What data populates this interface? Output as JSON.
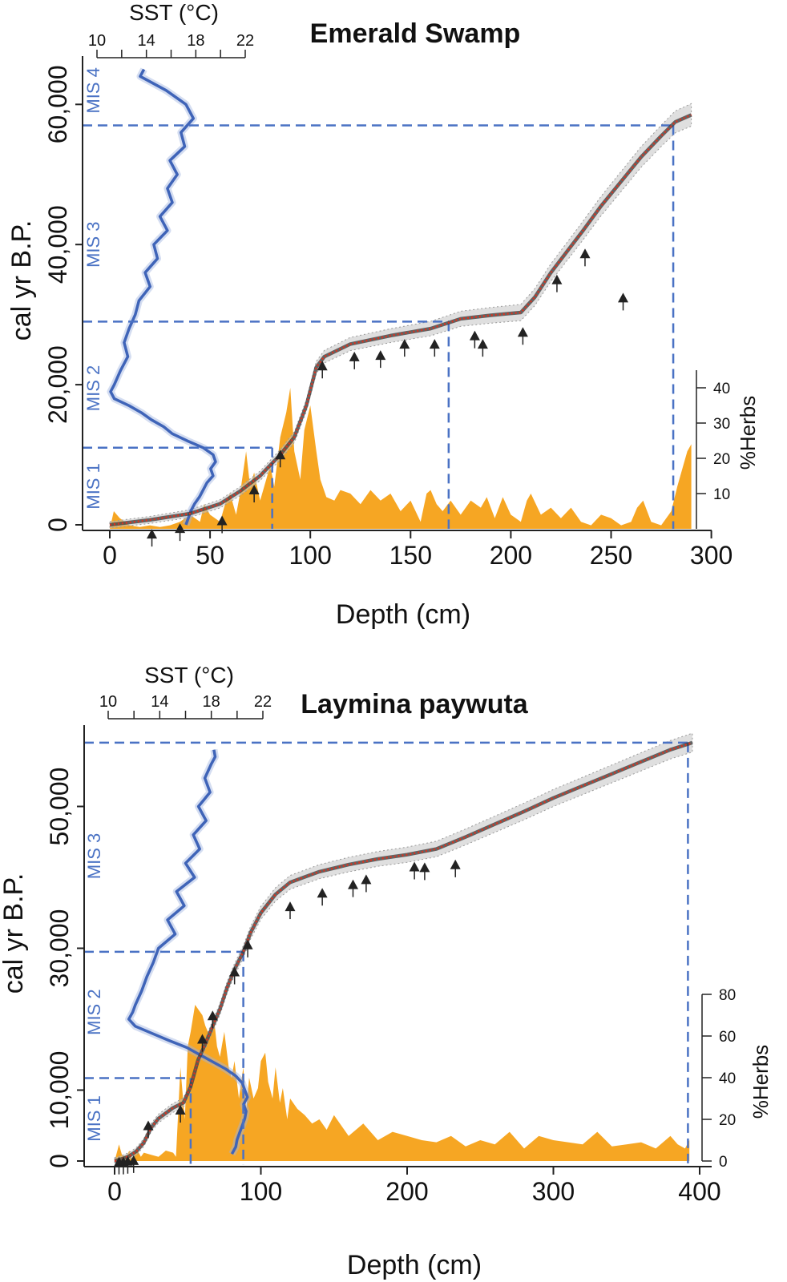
{
  "colors": {
    "sst": "#3f64b8",
    "herbs": "#f6a623",
    "age_model": "#d9331f",
    "envelope": "#c4c4c4",
    "dashed": "#4a72c4",
    "marker": "#222222"
  },
  "chart_data": [
    {
      "type": "line",
      "title": "Emerald Swamp",
      "xlabel": "Depth (cm)",
      "ylabel": "cal yr B.P.",
      "xlim": [
        -14,
        300
      ],
      "ylim": [
        0,
        66000
      ],
      "xticks": [
        0,
        50,
        100,
        150,
        200,
        250,
        300
      ],
      "xtick_labels": [
        "0",
        "50",
        "100",
        "150",
        "200",
        "250",
        "300"
      ],
      "yticks": [
        0,
        20000,
        40000,
        60000
      ],
      "ytick_labels": [
        "0",
        "20,000",
        "40,000",
        "60,000"
      ],
      "sst_axis": {
        "label": "SST (°C)",
        "range": [
          10,
          22
        ],
        "ticks": [
          10,
          14,
          18,
          22
        ],
        "tick_labels": [
          "10",
          "14",
          "18",
          "22"
        ]
      },
      "herbs_axis": {
        "label": "%Herbs",
        "range": [
          0,
          45
        ],
        "ticks": [
          10,
          20,
          30,
          40
        ],
        "tick_labels": [
          "10",
          "20",
          "30",
          "40"
        ]
      },
      "mis_labels": [
        {
          "text": "MIS 4",
          "age": 62000
        },
        {
          "text": "MIS 3",
          "age": 40000
        },
        {
          "text": "MIS 2",
          "age": 19500
        },
        {
          "text": "MIS 1",
          "age": 5500
        }
      ],
      "boundaries": [
        {
          "age": 11000,
          "depth": 81
        },
        {
          "age": 29000,
          "depth": 169
        },
        {
          "age": 57000,
          "depth": 281
        }
      ],
      "age_model": {
        "depth": [
          0,
          20,
          40,
          55,
          65,
          75,
          85,
          92,
          98,
          103,
          107,
          120,
          140,
          160,
          175,
          190,
          205,
          212,
          220,
          228,
          236,
          245,
          255,
          265,
          275,
          282,
          290
        ],
        "age": [
          0,
          700,
          1600,
          3000,
          4800,
          7000,
          10000,
          12500,
          17000,
          22500,
          24000,
          25800,
          27000,
          28000,
          29400,
          29900,
          30300,
          32500,
          36000,
          39000,
          42000,
          45500,
          49000,
          52500,
          55500,
          57500,
          58500
        ]
      },
      "dated_samples": {
        "depth": [
          21,
          35,
          56,
          72,
          85,
          106,
          122,
          135,
          147,
          162,
          182,
          186,
          206,
          223,
          237,
          256
        ],
        "age": [
          -1500,
          -700,
          400,
          4800,
          9800,
          22500,
          23800,
          24000,
          25600,
          25600,
          26800,
          25600,
          27300,
          34800,
          38500,
          32200
        ]
      },
      "sst": {
        "age": [
          65000,
          64000,
          62000,
          60000,
          58000,
          56000,
          54000,
          52000,
          50000,
          48000,
          46000,
          44000,
          42000,
          40000,
          38000,
          36000,
          34000,
          32000,
          30000,
          28000,
          26000,
          24000,
          22000,
          20000,
          19000,
          18000,
          17000,
          16000,
          15000,
          14000,
          13000,
          12000,
          11000,
          10000,
          9000,
          8000,
          7000,
          6000,
          5000,
          4000,
          3000,
          2000,
          1000,
          0
        ],
        "temp": [
          13.8,
          13.5,
          15.6,
          17.2,
          17.8,
          16.8,
          17.1,
          15.9,
          16.5,
          15.7,
          16.1,
          15.1,
          15.7,
          14.6,
          14.9,
          13.9,
          14.3,
          13.4,
          13.1,
          12.6,
          12.2,
          12.5,
          11.9,
          11.4,
          11.1,
          11.4,
          12.6,
          13.6,
          14.4,
          15.4,
          16.1,
          17.3,
          18.6,
          19.4,
          19.6,
          19.2,
          19.4,
          18.9,
          18.6,
          18.3,
          17.9,
          17.6,
          17.4,
          17.2
        ]
      },
      "herbs": {
        "depth": [
          0,
          2,
          5,
          10,
          15,
          20,
          25,
          30,
          35,
          40,
          45,
          47,
          50,
          55,
          58,
          60,
          63,
          65,
          68,
          70,
          72,
          75,
          78,
          80,
          82,
          85,
          88,
          90,
          92,
          95,
          97,
          100,
          103,
          105,
          108,
          112,
          115,
          120,
          125,
          130,
          135,
          140,
          145,
          150,
          155,
          158,
          160,
          163,
          166,
          170,
          175,
          180,
          185,
          188,
          192,
          196,
          200,
          205,
          208,
          210,
          215,
          220,
          225,
          230,
          235,
          240,
          245,
          250,
          255,
          260,
          263,
          266,
          270,
          275,
          280,
          283,
          286,
          288,
          290
        ],
        "pct": [
          0,
          5,
          3,
          1,
          0.5,
          1,
          0.5,
          1,
          2,
          4,
          2,
          7,
          4,
          2,
          8,
          10,
          4,
          10,
          22,
          12,
          16,
          8,
          14,
          18,
          12,
          26,
          33,
          40,
          22,
          14,
          28,
          35,
          22,
          14,
          9,
          8,
          11,
          10,
          7,
          11,
          8,
          10,
          5,
          8,
          2,
          10,
          11,
          7,
          5,
          8,
          4,
          8,
          6,
          9,
          3,
          9,
          4,
          2,
          8,
          10,
          4,
          6,
          3,
          6,
          2,
          1,
          4,
          3,
          1,
          2,
          6,
          8,
          2,
          1,
          5,
          12,
          18,
          22,
          24
        ]
      }
    },
    {
      "type": "line",
      "title": "Laymina paywuta",
      "xlabel": "Depth (cm)",
      "ylabel": "cal yr B.P.",
      "xlim": [
        -12,
        400
      ],
      "ylim": [
        0,
        66000
      ],
      "xticks": [
        0,
        100,
        200,
        300,
        400
      ],
      "xtick_labels": [
        "0",
        "100",
        "200",
        "300",
        "400"
      ],
      "yticks": [
        0,
        10000,
        30000,
        50000
      ],
      "ytick_labels": [
        "0",
        "10,000",
        "30,000",
        "50,000"
      ],
      "sst_axis": {
        "label": "SST (°C)",
        "range": [
          10,
          22
        ],
        "ticks": [
          10,
          14,
          18,
          22
        ],
        "tick_labels": [
          "10",
          "14",
          "18",
          "22"
        ]
      },
      "herbs_axis": {
        "label": "%Herbs",
        "range": [
          0,
          80
        ],
        "ticks": [
          0,
          20,
          40,
          60,
          80
        ],
        "tick_labels": [
          "0",
          "20",
          "40",
          "60",
          "80"
        ]
      },
      "mis_labels": [
        {
          "text": "MIS 3",
          "age": 43000
        },
        {
          "text": "MIS 2",
          "age": 21000
        },
        {
          "text": "MIS 1",
          "age": 6000
        }
      ],
      "boundaries": [
        {
          "age": 11700,
          "depth": 52
        },
        {
          "age": 29500,
          "depth": 88
        },
        {
          "age": 59000,
          "depth": 392
        }
      ],
      "age_model": {
        "depth": [
          0,
          5,
          10,
          15,
          20,
          25,
          30,
          40,
          47,
          52,
          57,
          62,
          67,
          72,
          77,
          82,
          88,
          93,
          100,
          110,
          120,
          140,
          160,
          180,
          200,
          220,
          240,
          260,
          280,
          300,
          320,
          340,
          360,
          380,
          395
        ],
        "age": [
          0,
          300,
          700,
          1400,
          2600,
          4700,
          6000,
          7500,
          8200,
          10500,
          14200,
          16500,
          19000,
          21400,
          24500,
          27000,
          29500,
          32200,
          35000,
          37600,
          39300,
          40800,
          41800,
          42600,
          43200,
          44000,
          45700,
          47500,
          49300,
          51200,
          52900,
          54600,
          56300,
          58000,
          59000
        ]
      },
      "dated_samples": {
        "depth": [
          3,
          6,
          9,
          13,
          23,
          45,
          60,
          67,
          82,
          91,
          120,
          142,
          163,
          172,
          205,
          212,
          233
        ],
        "age": [
          -300,
          -300,
          -200,
          -100,
          4800,
          7000,
          17000,
          20300,
          26500,
          30300,
          35700,
          37600,
          38800,
          39500,
          41300,
          41200,
          41600
        ]
      },
      "sst": {
        "age": [
          58000,
          57000,
          56000,
          54000,
          52000,
          50000,
          48000,
          46000,
          44000,
          42000,
          40000,
          38000,
          36000,
          34000,
          32000,
          30000,
          28000,
          26000,
          24000,
          22000,
          21000,
          20000,
          19000,
          18000,
          17000,
          16000,
          15000,
          14000,
          13000,
          12000,
          11000,
          10000,
          9000,
          8000,
          7000,
          6000,
          5000,
          4000,
          3000,
          2000,
          1000
        ],
        "temp": [
          18.2,
          18.3,
          18.0,
          17.5,
          17.9,
          17.0,
          17.6,
          16.6,
          17.1,
          16.0,
          16.7,
          15.3,
          15.9,
          14.6,
          15.2,
          13.9,
          13.5,
          13.0,
          12.6,
          12.1,
          11.9,
          11.6,
          12.1,
          13.4,
          14.7,
          16.1,
          17.1,
          18.1,
          19.1,
          19.9,
          20.4,
          20.6,
          20.8,
          20.5,
          20.7,
          20.6,
          20.4,
          20.2,
          20.0,
          19.9,
          19.6
        ]
      },
      "herbs": {
        "depth": [
          0,
          3,
          5,
          8,
          10,
          12,
          15,
          18,
          20,
          25,
          30,
          35,
          40,
          42,
          45,
          48,
          50,
          52,
          55,
          58,
          60,
          62,
          65,
          68,
          70,
          72,
          75,
          78,
          80,
          82,
          85,
          88,
          90,
          92,
          95,
          98,
          100,
          103,
          105,
          108,
          110,
          113,
          115,
          118,
          120,
          125,
          130,
          135,
          140,
          145,
          150,
          160,
          170,
          180,
          190,
          200,
          210,
          220,
          230,
          240,
          250,
          260,
          270,
          280,
          290,
          300,
          310,
          320,
          330,
          340,
          350,
          360,
          370,
          380,
          385,
          390,
          393
        ],
        "pct": [
          0,
          8,
          3,
          2,
          5,
          1,
          6,
          2,
          4,
          3,
          2,
          5,
          4,
          2,
          45,
          20,
          55,
          62,
          75,
          72,
          70,
          65,
          60,
          68,
          55,
          50,
          62,
          45,
          40,
          48,
          30,
          45,
          25,
          40,
          30,
          35,
          48,
          52,
          38,
          30,
          45,
          28,
          35,
          20,
          30,
          25,
          22,
          18,
          20,
          15,
          22,
          12,
          18,
          10,
          14,
          12,
          10,
          9,
          12,
          7,
          10,
          8,
          14,
          6,
          12,
          10,
          9,
          8,
          14,
          7,
          8,
          9,
          6,
          12,
          8,
          6,
          10
        ]
      }
    }
  ]
}
